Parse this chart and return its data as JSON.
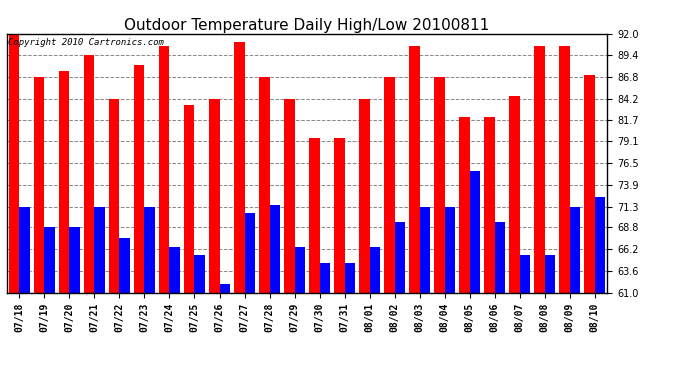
{
  "title": "Outdoor Temperature Daily High/Low 20100811",
  "copyright": "Copyright 2010 Cartronics.com",
  "dates": [
    "07/18",
    "07/19",
    "07/20",
    "07/21",
    "07/22",
    "07/23",
    "07/24",
    "07/25",
    "07/26",
    "07/27",
    "07/28",
    "07/29",
    "07/30",
    "07/31",
    "08/01",
    "08/02",
    "08/03",
    "08/04",
    "08/05",
    "08/06",
    "08/07",
    "08/08",
    "08/09",
    "08/10"
  ],
  "highs": [
    92.0,
    86.8,
    87.5,
    89.4,
    84.2,
    88.2,
    90.5,
    83.5,
    84.2,
    91.0,
    86.8,
    84.2,
    79.5,
    79.5,
    84.2,
    86.8,
    90.5,
    86.8,
    82.0,
    82.0,
    84.5,
    90.5,
    90.5,
    87.0
  ],
  "lows": [
    71.3,
    68.8,
    68.8,
    71.3,
    67.5,
    71.3,
    66.5,
    65.5,
    62.0,
    70.5,
    71.5,
    66.5,
    64.5,
    64.5,
    66.5,
    69.5,
    71.3,
    71.3,
    75.5,
    69.5,
    65.5,
    65.5,
    71.3,
    72.5
  ],
  "high_color": "#ff0000",
  "low_color": "#0000ff",
  "bg_color": "#ffffff",
  "grid_color": "#888888",
  "ylim_min": 61.0,
  "ylim_max": 92.0,
  "yticks": [
    61.0,
    63.6,
    66.2,
    68.8,
    71.3,
    73.9,
    76.5,
    79.1,
    81.7,
    84.2,
    86.8,
    89.4,
    92.0
  ],
  "bar_width": 0.42,
  "title_fontsize": 11,
  "tick_fontsize": 7,
  "copyright_fontsize": 6.5
}
